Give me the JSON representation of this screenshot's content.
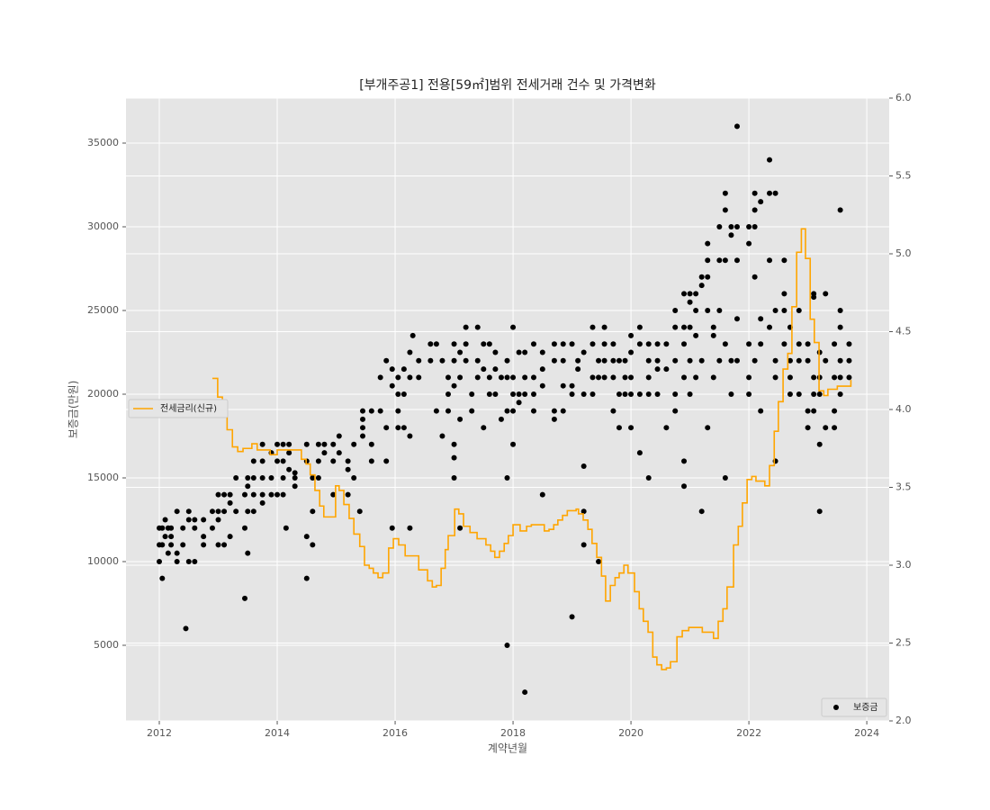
{
  "chart_data": {
    "type": "combo",
    "title": "[부개주공1] 전용[59㎡]범위 전세거래 건수 및 가격변화",
    "x_label": "계약년월",
    "y_label": "보증금(만원)",
    "xlim": [
      2011.435,
      2024.38
    ],
    "xticks": [
      2012,
      2014,
      2016,
      2018,
      2020,
      2022,
      2024
    ],
    "ylim": [
      483,
      37688
    ],
    "yticks": [
      5000,
      10000,
      15000,
      20000,
      25000,
      30000,
      35000
    ],
    "y2lim": [
      2.0,
      6.0
    ],
    "y2ticks": [
      {
        "value": 2,
        "label": "2.0"
      },
      2.5,
      {
        "value": 3,
        "label": "3.0"
      },
      3.5,
      {
        "value": 4,
        "label": "4.0"
      },
      4.5,
      {
        "value": 5,
        "label": "5.0"
      },
      5.5,
      {
        "value": 6,
        "label": "6.0"
      }
    ],
    "grid": true,
    "background": "#e5e5e5",
    "series": [
      {
        "name": "보증금",
        "type": "scatter",
        "color": "#000000",
        "legend": "lower right",
        "x": [
          2012.0,
          2012.0,
          2012.0,
          2012.05,
          2012.05,
          2012.05,
          2012.1,
          2012.1,
          2012.15,
          2012.15,
          2012.2,
          2012.2,
          2012.2,
          2012.3,
          2012.3,
          2012.3,
          2012.4,
          2012.4,
          2012.45,
          2012.5,
          2012.5,
          2012.5,
          2012.6,
          2012.6,
          2012.6,
          2012.75,
          2012.75,
          2012.75,
          2012.9,
          2012.9,
          2013.0,
          2013.0,
          2013.0,
          2013.0,
          2013.1,
          2013.1,
          2013.1,
          2013.2,
          2013.2,
          2013.2,
          2013.3,
          2013.3,
          2013.45,
          2013.45,
          2013.45,
          2013.5,
          2013.5,
          2013.5,
          2013.5,
          2013.6,
          2013.6,
          2013.6,
          2013.6,
          2013.75,
          2013.75,
          2013.75,
          2013.75,
          2013.75,
          2013.9,
          2013.9,
          2013.9,
          2014.0,
          2014.0,
          2014.0,
          2014.1,
          2014.1,
          2014.1,
          2014.1,
          2014.15,
          2014.2,
          2014.2,
          2014.2,
          2014.3,
          2014.3,
          2014.3,
          2014.5,
          2014.5,
          2014.5,
          2014.5,
          2014.6,
          2014.6,
          2014.6,
          2014.7,
          2014.7,
          2014.7,
          2014.8,
          2014.8,
          2014.95,
          2014.95,
          2014.95,
          2015.05,
          2015.05,
          2015.2,
          2015.2,
          2015.2,
          2015.3,
          2015.3,
          2015.4,
          2015.45,
          2015.45,
          2015.45,
          2015.45,
          2015.6,
          2015.6,
          2015.6,
          2015.75,
          2015.75,
          2015.85,
          2015.85,
          2015.85,
          2015.95,
          2015.95,
          2015.95,
          2016.05,
          2016.05,
          2016.05,
          2016.05,
          2016.15,
          2016.15,
          2016.15,
          2016.25,
          2016.25,
          2016.25,
          2016.25,
          2016.3,
          2016.4,
          2016.4,
          2016.6,
          2016.6,
          2016.7,
          2016.7,
          2016.8,
          2016.8,
          2016.9,
          2016.9,
          2016.9,
          2017.0,
          2017.0,
          2017.0,
          2017.0,
          2017.0,
          2017.0,
          2017.1,
          2017.1,
          2017.1,
          2017.1,
          2017.2,
          2017.2,
          2017.2,
          2017.3,
          2017.3,
          2017.4,
          2017.4,
          2017.4,
          2017.5,
          2017.5,
          2017.5,
          2017.6,
          2017.6,
          2017.6,
          2017.7,
          2017.7,
          2017.7,
          2017.8,
          2017.8,
          2017.9,
          2017.9,
          2017.9,
          2017.9,
          2017.9,
          2018.0,
          2018.0,
          2018.0,
          2018.0,
          2018.0,
          2018.1,
          2018.1,
          2018.1,
          2018.2,
          2018.2,
          2018.2,
          2018.2,
          2018.35,
          2018.35,
          2018.35,
          2018.35,
          2018.5,
          2018.5,
          2018.5,
          2018.5,
          2018.7,
          2018.7,
          2018.7,
          2018.7,
          2018.85,
          2018.85,
          2018.85,
          2018.85,
          2019.0,
          2019.0,
          2019.0,
          2019.0,
          2019.1,
          2019.1,
          2019.2,
          2019.2,
          2019.2,
          2019.2,
          2019.2,
          2019.35,
          2019.35,
          2019.35,
          2019.35,
          2019.45,
          2019.45,
          2019.45,
          2019.55,
          2019.55,
          2019.55,
          2019.55,
          2019.7,
          2019.7,
          2019.7,
          2019.7,
          2019.8,
          2019.8,
          2019.8,
          2019.9,
          2019.9,
          2019.9,
          2020.0,
          2020.0,
          2020.0,
          2020.0,
          2020.0,
          2020.15,
          2020.15,
          2020.15,
          2020.15,
          2020.3,
          2020.3,
          2020.3,
          2020.3,
          2020.3,
          2020.45,
          2020.45,
          2020.45,
          2020.45,
          2020.6,
          2020.6,
          2020.6,
          2020.75,
          2020.75,
          2020.75,
          2020.75,
          2020.75,
          2020.9,
          2020.9,
          2020.9,
          2020.9,
          2020.9,
          2020.9,
          2021.0,
          2021.0,
          2021.0,
          2021.0,
          2021.0,
          2021.1,
          2021.1,
          2021.1,
          2021.1,
          2021.2,
          2021.2,
          2021.2,
          2021.2,
          2021.3,
          2021.3,
          2021.3,
          2021.3,
          2021.3,
          2021.4,
          2021.4,
          2021.4,
          2021.5,
          2021.5,
          2021.5,
          2021.5,
          2021.6,
          2021.6,
          2021.6,
          2021.6,
          2021.6,
          2021.7,
          2021.7,
          2021.7,
          2021.7,
          2021.8,
          2021.8,
          2021.8,
          2021.8,
          2021.8,
          2022.0,
          2022.0,
          2022.0,
          2022.0,
          2022.0,
          2022.1,
          2022.1,
          2022.1,
          2022.1,
          2022.1,
          2022.2,
          2022.2,
          2022.2,
          2022.2,
          2022.35,
          2022.35,
          2022.35,
          2022.35,
          2022.45,
          2022.45,
          2022.45,
          2022.45,
          2022.45,
          2022.6,
          2022.6,
          2022.6,
          2022.6,
          2022.7,
          2022.7,
          2022.7,
          2022.7,
          2022.85,
          2022.85,
          2022.85,
          2022.85,
          2023.0,
          2023.0,
          2023.0,
          2023.0,
          2023.1,
          2023.1,
          2023.1,
          2023.1,
          2023.1,
          2023.2,
          2023.2,
          2023.2,
          2023.2,
          2023.2,
          2023.3,
          2023.3,
          2023.3,
          2023.45,
          2023.45,
          2023.45,
          2023.45,
          2023.55,
          2023.55,
          2023.55,
          2023.55,
          2023.55,
          2023.55,
          2023.7,
          2023.7,
          2023.7
        ],
        "values": [
          12000,
          11000,
          10000,
          9000,
          12000,
          11000,
          12500,
          11500,
          12000,
          10500,
          11500,
          11000,
          12000,
          13000,
          10500,
          10000,
          12000,
          11000,
          6000,
          13000,
          12500,
          10000,
          12500,
          10000,
          12000,
          11500,
          11000,
          12500,
          13000,
          12000,
          14000,
          13000,
          11000,
          12500,
          14000,
          13000,
          11000,
          14000,
          11500,
          13500,
          13000,
          15000,
          7800,
          12000,
          14000,
          10500,
          15000,
          13000,
          14500,
          16000,
          15000,
          14000,
          13000,
          17000,
          16000,
          15000,
          14000,
          13500,
          16500,
          15000,
          14000,
          17000,
          16000,
          14000,
          17000,
          15000,
          14000,
          16000,
          12000,
          17000,
          16500,
          15500,
          15000,
          14500,
          15300,
          17000,
          16000,
          9000,
          11500,
          15000,
          13000,
          11000,
          17000,
          16000,
          15000,
          17000,
          16500,
          17000,
          14000,
          16000,
          17500,
          16500,
          16000,
          15500,
          14000,
          17000,
          15000,
          13000,
          18000,
          19000,
          17500,
          18500,
          16000,
          17000,
          19000,
          21000,
          19000,
          22000,
          18000,
          16000,
          21500,
          20500,
          12000,
          21000,
          20000,
          18000,
          19000,
          21500,
          20000,
          18000,
          22500,
          21000,
          17500,
          12000,
          23500,
          22000,
          21000,
          23000,
          22000,
          23000,
          19000,
          22000,
          17500,
          21000,
          20000,
          19000,
          22000,
          16200,
          20500,
          23000,
          17000,
          15000,
          18500,
          12000,
          22500,
          21000,
          24000,
          22000,
          23000,
          20000,
          19000,
          24000,
          22000,
          21000,
          23000,
          18000,
          21500,
          23000,
          21000,
          20000,
          22500,
          21500,
          20000,
          21000,
          18500,
          15000,
          5000,
          19000,
          22000,
          21000,
          24000,
          21000,
          19000,
          17000,
          20000,
          22500,
          20000,
          19500,
          22500,
          2200,
          20000,
          21000,
          23000,
          21000,
          20000,
          19000,
          22500,
          14000,
          20500,
          21500,
          23000,
          19000,
          18500,
          22000,
          23000,
          22000,
          20500,
          19000,
          23000,
          20000,
          6700,
          20500,
          22000,
          21500,
          15700,
          11000,
          13000,
          20000,
          22500,
          24000,
          23000,
          21000,
          20000,
          10000,
          22000,
          21000,
          23000,
          24000,
          22000,
          21000,
          23000,
          22000,
          19000,
          21000,
          22000,
          20000,
          18000,
          22000,
          21000,
          20000,
          23500,
          22500,
          21000,
          18000,
          20000,
          24000,
          23000,
          20000,
          16500,
          23000,
          22000,
          21000,
          15000,
          20000,
          23000,
          22000,
          21500,
          20000,
          23000,
          21500,
          18000,
          25000,
          24000,
          22000,
          20000,
          19000,
          26000,
          24000,
          23000,
          21000,
          16000,
          14500,
          26000,
          25500,
          24000,
          22000,
          20000,
          26000,
          25000,
          23500,
          21000,
          27000,
          26500,
          13000,
          22000,
          28000,
          27000,
          29000,
          25000,
          18000,
          24000,
          23500,
          21000,
          30000,
          28000,
          25000,
          22000,
          31000,
          32000,
          28000,
          23000,
          15000,
          30000,
          29500,
          22000,
          20000,
          36000,
          30000,
          28000,
          24500,
          22000,
          30000,
          29000,
          23000,
          21000,
          20000,
          32000,
          31000,
          30000,
          27000,
          22000,
          31500,
          24500,
          23000,
          19000,
          34000,
          32000,
          28000,
          24000,
          32000,
          16000,
          25000,
          22000,
          21000,
          28000,
          26000,
          23000,
          25000,
          22000,
          24000,
          21000,
          20000,
          25000,
          23000,
          22000,
          20000,
          23000,
          22000,
          18000,
          19000,
          26000,
          25800,
          21000,
          20000,
          19000,
          13000,
          17000,
          22500,
          21000,
          20000,
          26000,
          22000,
          18000,
          23000,
          19000,
          21000,
          18000,
          31000,
          25000,
          24000,
          22000,
          21000,
          20000,
          23000,
          22000,
          21000
        ]
      },
      {
        "name": "전세금리(신규)",
        "type": "line",
        "step": "post",
        "axis": "y2",
        "color": "#ffa500",
        "legend": "center left",
        "x": [
          2012.9,
          2012.99,
          2013.07,
          2013.15,
          2013.24,
          2013.33,
          2013.42,
          2013.57,
          2013.66,
          2013.88,
          2014.0,
          2014.26,
          2014.41,
          2014.49,
          2014.56,
          2014.64,
          2014.72,
          2014.79,
          2014.92,
          2014.99,
          2015.05,
          2015.13,
          2015.22,
          2015.3,
          2015.4,
          2015.48,
          2015.56,
          2015.63,
          2015.71,
          2015.79,
          2015.89,
          2015.97,
          2016.06,
          2016.17,
          2016.4,
          2016.47,
          2016.55,
          2016.63,
          2016.7,
          2016.78,
          2016.85,
          2016.9,
          2017.01,
          2017.08,
          2017.16,
          2017.27,
          2017.39,
          2017.54,
          2017.62,
          2017.69,
          2017.77,
          2017.85,
          2017.92,
          2018.0,
          2018.12,
          2018.23,
          2018.31,
          2018.53,
          2018.61,
          2018.69,
          2018.76,
          2018.84,
          2018.92,
          2019.07,
          2019.11,
          2019.19,
          2019.27,
          2019.34,
          2019.42,
          2019.5,
          2019.57,
          2019.65,
          2019.73,
          2019.8,
          2019.88,
          2019.95,
          2020.06,
          2020.14,
          2020.21,
          2020.29,
          2020.37,
          2020.44,
          2020.52,
          2020.6,
          2020.67,
          2020.78,
          2020.87,
          2020.98,
          2021.21,
          2021.4,
          2021.48,
          2021.56,
          2021.63,
          2021.74,
          2021.82,
          2021.89,
          2021.97,
          2022.05,
          2022.12,
          2022.27,
          2022.35,
          2022.43,
          2022.5,
          2022.58,
          2022.66,
          2022.73,
          2022.81,
          2022.89,
          2022.96,
          2023.04,
          2023.11,
          2023.19,
          2023.27,
          2023.34,
          2023.5,
          2023.73
        ],
        "values": [
          4.2,
          4.08,
          4.0,
          3.87,
          3.76,
          3.73,
          3.75,
          3.78,
          3.74,
          3.71,
          3.74,
          3.74,
          3.68,
          3.65,
          3.58,
          3.48,
          3.38,
          3.31,
          3.31,
          3.51,
          3.48,
          3.39,
          3.3,
          3.2,
          3.12,
          3.0,
          2.98,
          2.95,
          2.92,
          2.95,
          3.11,
          3.17,
          3.13,
          3.06,
          2.97,
          2.97,
          2.9,
          2.86,
          2.87,
          2.98,
          3.1,
          3.19,
          3.36,
          3.33,
          3.25,
          3.21,
          3.17,
          3.13,
          3.09,
          3.05,
          3.09,
          3.14,
          3.19,
          3.26,
          3.22,
          3.25,
          3.26,
          3.22,
          3.23,
          3.26,
          3.29,
          3.32,
          3.35,
          3.36,
          3.33,
          3.29,
          3.23,
          3.14,
          3.05,
          2.93,
          2.77,
          2.87,
          2.92,
          2.95,
          3.0,
          2.95,
          2.83,
          2.72,
          2.64,
          2.57,
          2.41,
          2.36,
          2.33,
          2.34,
          2.38,
          2.54,
          2.58,
          2.6,
          2.57,
          2.53,
          2.64,
          2.72,
          2.86,
          3.13,
          3.25,
          3.4,
          3.55,
          3.57,
          3.54,
          3.51,
          3.64,
          3.86,
          4.05,
          4.26,
          4.36,
          4.66,
          5.01,
          5.16,
          4.97,
          4.58,
          4.43,
          4.12,
          4.09,
          4.13,
          4.15,
          4.19
        ]
      }
    ]
  }
}
